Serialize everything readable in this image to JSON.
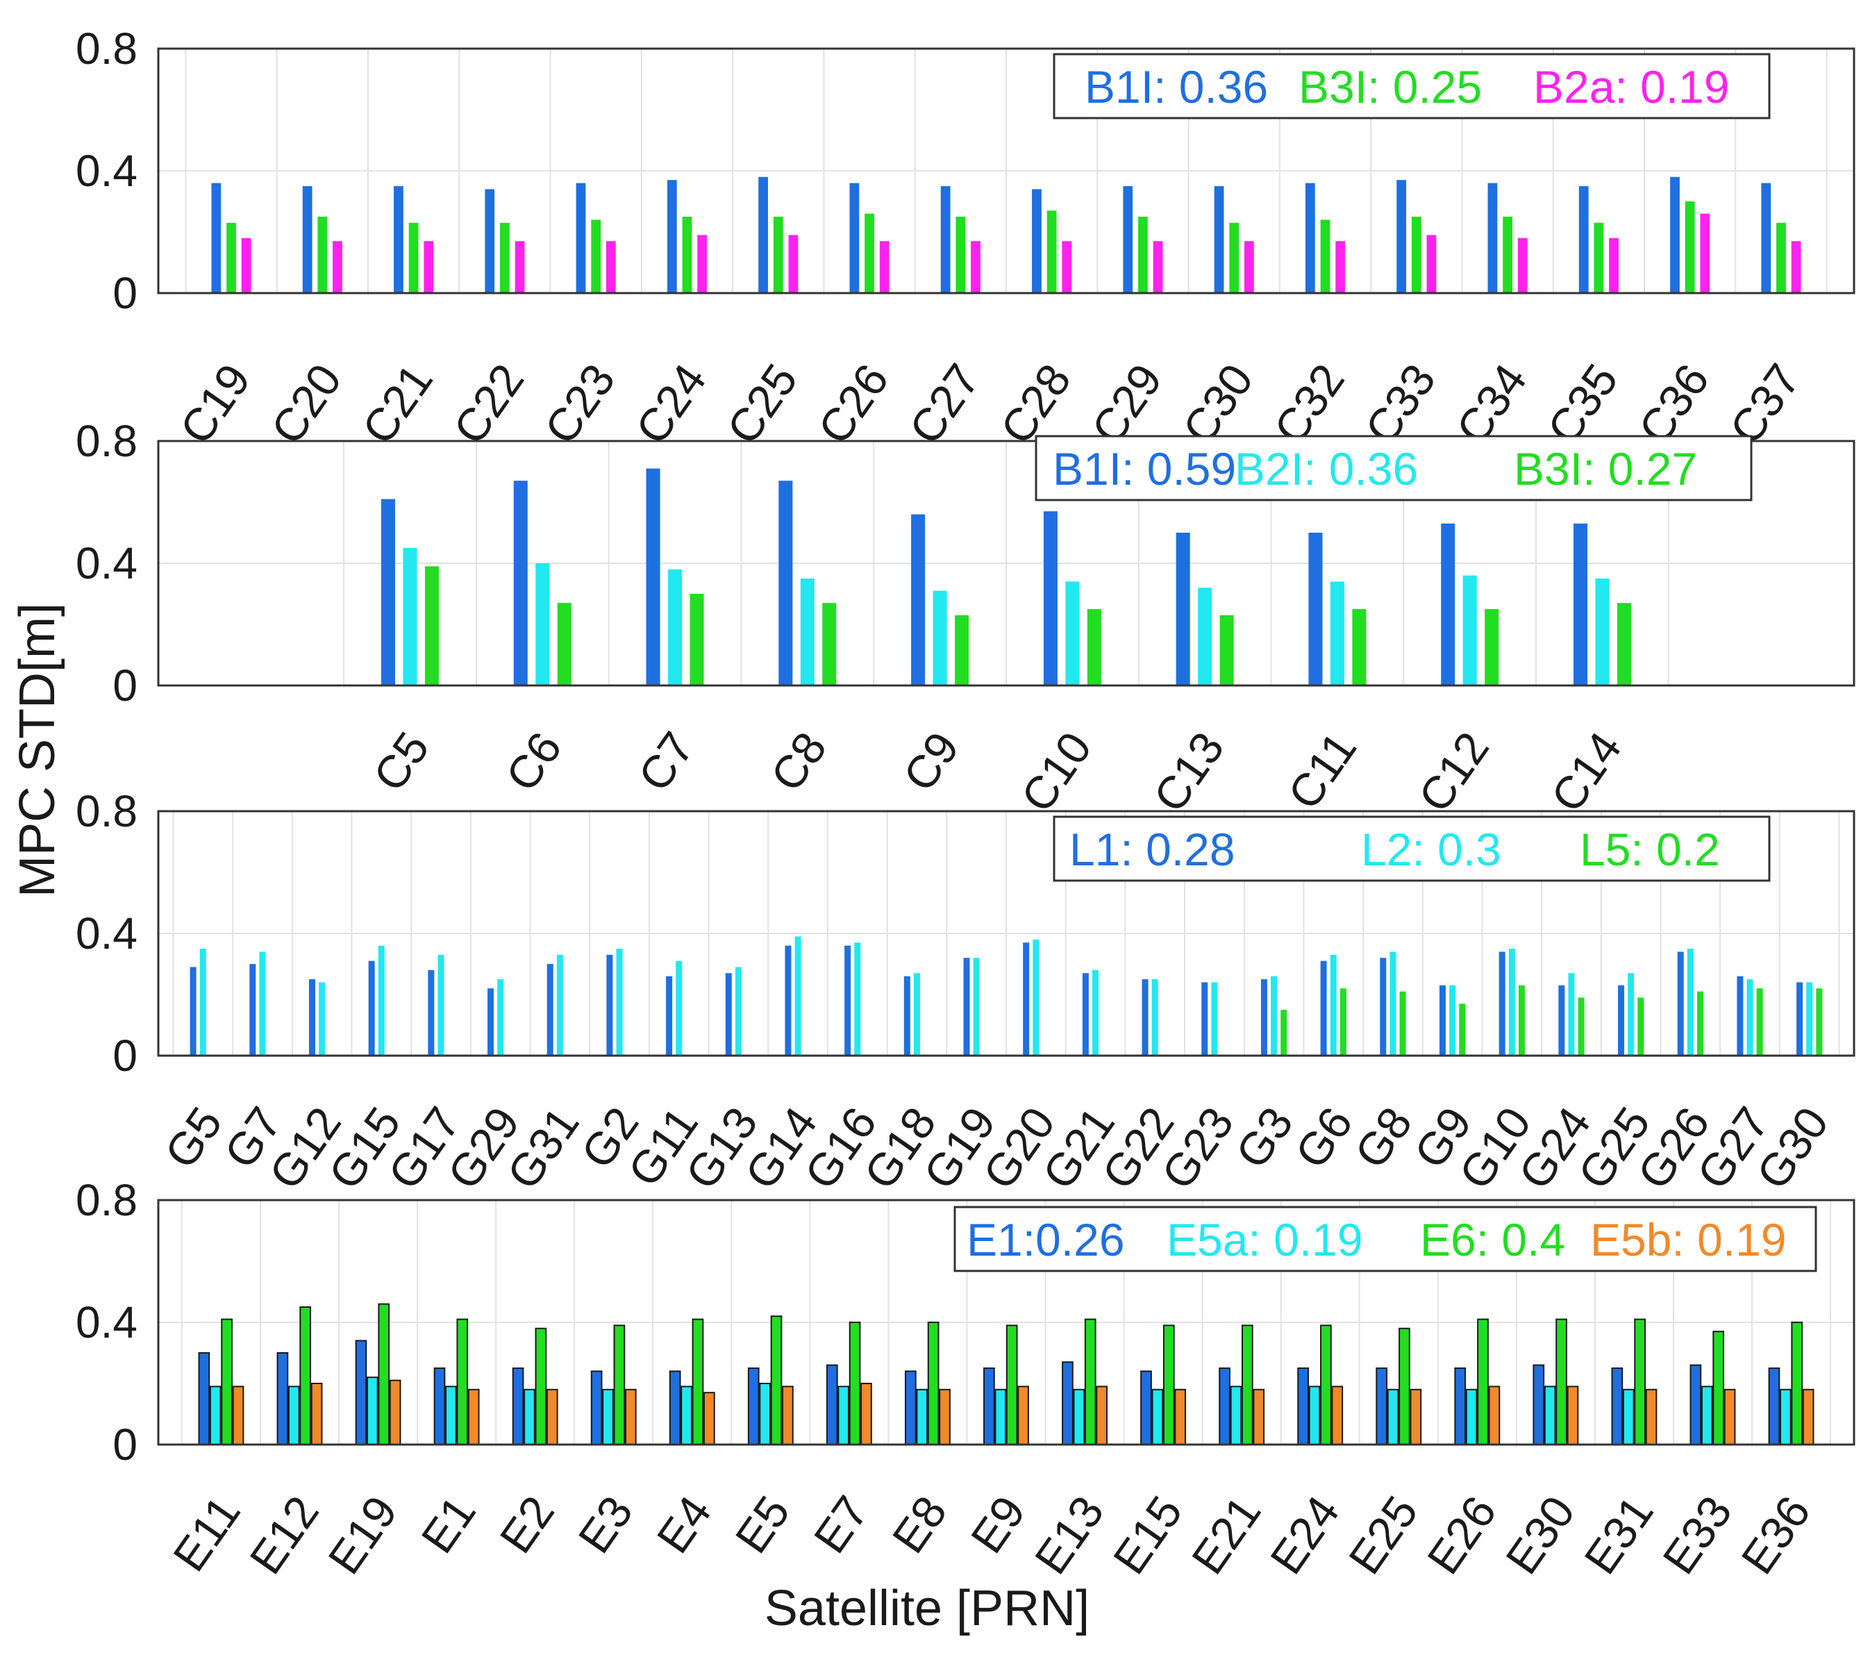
{
  "chart_data": [
    {
      "type": "bar",
      "ylabel": "",
      "ylim": [
        0,
        0.8
      ],
      "yticks": [
        "0",
        "0.4",
        "0.8"
      ],
      "grid": true,
      "legend_position": "top-right",
      "categories": [
        "C19",
        "C20",
        "C21",
        "C22",
        "C23",
        "C24",
        "C25",
        "C26",
        "C27",
        "C28",
        "C29",
        "C30",
        "C32",
        "C33",
        "C34",
        "C35",
        "C36",
        "C37"
      ],
      "series": [
        {
          "name": "B1I",
          "label": "B1I: 0.36",
          "color": "#1f6fe0",
          "values": [
            0.36,
            0.35,
            0.35,
            0.34,
            0.36,
            0.37,
            0.38,
            0.36,
            0.35,
            0.34,
            0.35,
            0.35,
            0.36,
            0.37,
            0.36,
            0.35,
            0.38,
            0.36
          ]
        },
        {
          "name": "B3I",
          "label": "B3I: 0.25",
          "color": "#22dd22",
          "values": [
            0.23,
            0.25,
            0.23,
            0.23,
            0.24,
            0.25,
            0.25,
            0.26,
            0.25,
            0.27,
            0.25,
            0.23,
            0.24,
            0.25,
            0.25,
            0.23,
            0.3,
            0.23
          ]
        },
        {
          "name": "B2a",
          "label": "B2a: 0.19",
          "color": "#ff22ee",
          "values": [
            0.18,
            0.17,
            0.17,
            0.17,
            0.17,
            0.19,
            0.19,
            0.17,
            0.17,
            0.17,
            0.17,
            0.17,
            0.17,
            0.19,
            0.18,
            0.18,
            0.26,
            0.17
          ]
        }
      ]
    },
    {
      "type": "bar",
      "ylabel": "MPC STD[m]",
      "ylim": [
        0,
        0.8
      ],
      "yticks": [
        "0",
        "0.4",
        "0.8"
      ],
      "grid": true,
      "legend_position": "top-right",
      "categories": [
        "C5",
        "C6",
        "C7",
        "C8",
        "C9",
        "C10",
        "C13",
        "C11",
        "C12",
        "C14"
      ],
      "series": [
        {
          "name": "B1I",
          "label": "B1I: 0.59",
          "color": "#1f6fe0",
          "values": [
            0.61,
            0.67,
            0.71,
            0.67,
            0.56,
            0.57,
            0.5,
            0.5,
            0.53,
            0.53
          ]
        },
        {
          "name": "B2I",
          "label": "B2I: 0.36",
          "color": "#22e8f0",
          "values": [
            0.45,
            0.4,
            0.38,
            0.35,
            0.31,
            0.34,
            0.32,
            0.34,
            0.36,
            0.35
          ]
        },
        {
          "name": "B3I",
          "label": "B3I: 0.27",
          "color": "#22dd22",
          "values": [
            0.39,
            0.27,
            0.3,
            0.27,
            0.23,
            0.25,
            0.23,
            0.25,
            0.25,
            0.27
          ]
        }
      ]
    },
    {
      "type": "bar",
      "ylabel": "",
      "ylim": [
        0,
        0.8
      ],
      "yticks": [
        "0",
        "0.4",
        "0.8"
      ],
      "grid": true,
      "legend_position": "top-right",
      "categories": [
        "G5",
        "G7",
        "G12",
        "G15",
        "G17",
        "G29",
        "G31",
        "G2",
        "G11",
        "G13",
        "G14",
        "G16",
        "G18",
        "G19",
        "G20",
        "G21",
        "G22",
        "G23",
        "G3",
        "G6",
        "G8",
        "G9",
        "G10",
        "G24",
        "G25",
        "G26",
        "G27",
        "G30"
      ],
      "series": [
        {
          "name": "L1",
          "label": "L1: 0.28",
          "color": "#1f6fe0",
          "values": [
            0.29,
            0.3,
            0.25,
            0.31,
            0.28,
            0.22,
            0.3,
            0.33,
            0.26,
            0.27,
            0.36,
            0.36,
            0.26,
            0.32,
            0.37,
            0.27,
            0.25,
            0.24,
            0.25,
            0.31,
            0.32,
            0.23,
            0.34,
            0.23,
            0.23,
            0.34,
            0.26,
            0.24
          ]
        },
        {
          "name": "L2",
          "label": "L2: 0.3",
          "color": "#22e8f0",
          "values": [
            0.35,
            0.34,
            0.24,
            0.36,
            0.33,
            0.25,
            0.33,
            0.35,
            0.31,
            0.29,
            0.39,
            0.37,
            0.27,
            0.32,
            0.38,
            0.28,
            0.25,
            0.24,
            0.26,
            0.33,
            0.34,
            0.23,
            0.35,
            0.27,
            0.27,
            0.35,
            0.25,
            0.24
          ]
        },
        {
          "name": "L5",
          "label": "L5: 0.2",
          "color": "#22dd22",
          "values": [
            0,
            0,
            0,
            0,
            0,
            0,
            0,
            0,
            0,
            0,
            0,
            0,
            0,
            0,
            0,
            0,
            0,
            0,
            0.15,
            0.22,
            0.21,
            0.17,
            0.23,
            0.19,
            0.19,
            0.21,
            0.22,
            0.22
          ]
        }
      ]
    },
    {
      "type": "bar",
      "ylabel": "",
      "xlabel": "Satellite [PRN]",
      "ylim": [
        0,
        0.8
      ],
      "yticks": [
        "0",
        "0.4",
        "0.8"
      ],
      "grid": true,
      "legend_position": "top-right",
      "categories": [
        "E11",
        "E12",
        "E19",
        "E1",
        "E2",
        "E3",
        "E4",
        "E5",
        "E7",
        "E8",
        "E9",
        "E13",
        "E15",
        "E21",
        "E24",
        "E25",
        "E26",
        "E30",
        "E31",
        "E33",
        "E36"
      ],
      "series": [
        {
          "name": "E1",
          "label": "E1:0.26",
          "color": "#1f6fe0",
          "values": [
            0.3,
            0.3,
            0.34,
            0.25,
            0.25,
            0.24,
            0.24,
            0.25,
            0.26,
            0.24,
            0.25,
            0.27,
            0.24,
            0.25,
            0.25,
            0.25,
            0.25,
            0.26,
            0.25,
            0.26,
            0.25
          ]
        },
        {
          "name": "E5a",
          "label": "E5a: 0.19",
          "color": "#22e8f0",
          "values": [
            0.19,
            0.19,
            0.22,
            0.19,
            0.18,
            0.18,
            0.19,
            0.2,
            0.19,
            0.18,
            0.18,
            0.18,
            0.18,
            0.19,
            0.19,
            0.18,
            0.18,
            0.19,
            0.18,
            0.19,
            0.18
          ]
        },
        {
          "name": "E6",
          "label": "E6: 0.4",
          "color": "#22dd22",
          "values": [
            0.41,
            0.45,
            0.46,
            0.41,
            0.38,
            0.39,
            0.41,
            0.42,
            0.4,
            0.4,
            0.39,
            0.41,
            0.39,
            0.39,
            0.39,
            0.38,
            0.41,
            0.41,
            0.41,
            0.37,
            0.4
          ]
        },
        {
          "name": "E5b",
          "label": "E5b: 0.19",
          "color": "#f08a2a",
          "values": [
            0.19,
            0.2,
            0.21,
            0.18,
            0.18,
            0.18,
            0.17,
            0.19,
            0.2,
            0.18,
            0.19,
            0.19,
            0.18,
            0.18,
            0.19,
            0.18,
            0.19,
            0.19,
            0.18,
            0.18,
            0.18
          ]
        }
      ]
    }
  ]
}
